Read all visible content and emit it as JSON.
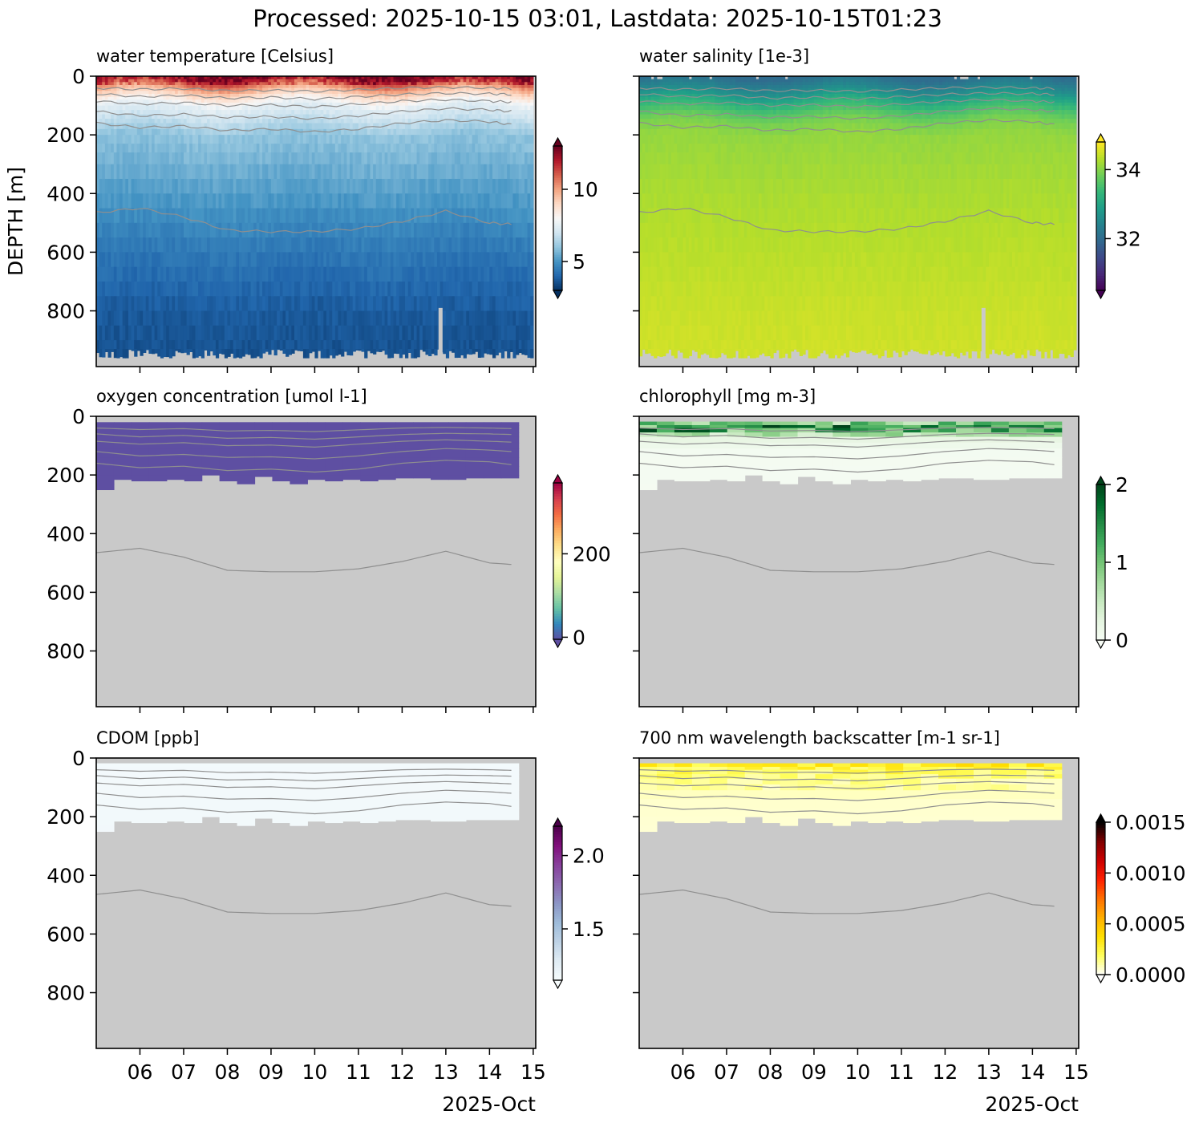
{
  "page": {
    "title": "Processed: 2025-10-15 03:01, Lastdata: 2025-10-15T01:23"
  },
  "colors": {
    "missing_gray": "#c9c9c9",
    "contour": "#8f8f8f",
    "axes": "#000000"
  },
  "chart_data": {
    "type": "heatmap",
    "description_note": "",
    "x_axis": {
      "xlim": [
        "2025-10-05T00:00",
        "2025-10-15T01:23"
      ],
      "tick_labels": [
        "06",
        "07",
        "08",
        "09",
        "10",
        "11",
        "12",
        "13",
        "14",
        "15"
      ],
      "tick_dates": [
        "2025-10-06",
        "2025-10-07",
        "2025-10-08",
        "2025-10-09",
        "2025-10-10",
        "2025-10-11",
        "2025-10-12",
        "2025-10-13",
        "2025-10-14",
        "2025-10-15"
      ],
      "offset_label": "2025-Oct"
    },
    "y_axis": {
      "label": "DEPTH [m]",
      "ylim": [
        990,
        0
      ],
      "inverted": true,
      "tick_labels": [
        "0",
        "200",
        "400",
        "600",
        "800"
      ],
      "tick_values": [
        0,
        200,
        400,
        600,
        800
      ]
    },
    "density_contours_depth_m": {
      "note": "",
      "x_dates": [
        "2025-10-05",
        "2025-10-06",
        "2025-10-07",
        "2025-10-08",
        "2025-10-09",
        "2025-10-10",
        "2025-10-11",
        "2025-10-12",
        "2025-10-13",
        "2025-10-14",
        "2025-10-14T12:00"
      ],
      "levels": [
        [
          40,
          45,
          42,
          50,
          48,
          52,
          46,
          40,
          38,
          40,
          42
        ],
        [
          60,
          70,
          65,
          75,
          72,
          78,
          70,
          62,
          58,
          60,
          62
        ],
        [
          85,
          95,
          90,
          100,
          98,
          105,
          95,
          85,
          80,
          85,
          88
        ],
        [
          120,
          135,
          130,
          140,
          138,
          145,
          135,
          120,
          110,
          115,
          120
        ],
        [
          160,
          175,
          170,
          185,
          180,
          190,
          180,
          160,
          150,
          155,
          165
        ],
        [
          465,
          450,
          480,
          525,
          530,
          530,
          520,
          495,
          460,
          500,
          505
        ]
      ]
    },
    "panels": [
      {
        "id": "temperature",
        "title": "water temperature [Celsius]",
        "colormap": "RdBu_r",
        "clim": [
          3,
          13
        ],
        "colorbar_ticks": [
          "5",
          "10"
        ],
        "colorbar_tick_values": [
          5,
          10
        ],
        "data_depth_range_m": [
          20,
          960
        ],
        "profile": {
          "depths": [
            0,
            50,
            100,
            150,
            200,
            300,
            400,
            500,
            600,
            700,
            800,
            960
          ],
          "values": [
            12.5,
            9.5,
            7.5,
            6.8,
            6.0,
            5.6,
            5.2,
            4.8,
            4.4,
            4.1,
            3.8,
            3.6
          ]
        }
      },
      {
        "id": "salinity",
        "title": "water salinity [1e-3]",
        "colormap": "viridis",
        "clim": [
          30.5,
          34.8
        ],
        "colorbar_ticks": [
          "32",
          "34"
        ],
        "colorbar_tick_values": [
          32,
          34
        ],
        "data_depth_range_m": [
          0,
          960
        ],
        "profile": {
          "depths": [
            0,
            50,
            100,
            150,
            200,
            400,
            600,
            800,
            960
          ],
          "values": [
            32.0,
            32.6,
            33.4,
            33.9,
            34.1,
            34.25,
            34.35,
            34.45,
            34.5
          ]
        }
      },
      {
        "id": "oxygen",
        "title": "oxygen concentration [umol l-1]",
        "colormap": "Spectral_r",
        "clim": [
          -5,
          370
        ],
        "colorbar_ticks": [
          "0",
          "200"
        ],
        "colorbar_tick_values": [
          0,
          200
        ],
        "data_depth_range_m": [
          20,
          250
        ],
        "profile": {
          "depths": [
            0,
            250
          ],
          "values": [
            -5,
            -5
          ]
        }
      },
      {
        "id": "chlorophyll",
        "title": "chlorophyll [mg m-3]",
        "colormap": "Greens",
        "clim": [
          0,
          2
        ],
        "colorbar_ticks": [
          "0",
          "1",
          "2"
        ],
        "colorbar_tick_values": [
          0,
          1,
          2
        ],
        "data_depth_range_m": [
          20,
          250
        ],
        "profile": {
          "depths": [
            20,
            40,
            60,
            80,
            120,
            250
          ],
          "values": [
            0.5,
            1.3,
            0.5,
            0.2,
            0.05,
            0.03
          ]
        }
      },
      {
        "id": "cdom",
        "title": "CDOM [ppb]",
        "colormap": "BuPu",
        "clim": [
          1.15,
          2.2
        ],
        "colorbar_ticks": [
          "1.5",
          "2.0"
        ],
        "colorbar_tick_values": [
          1.5,
          2.0
        ],
        "data_depth_range_m": [
          20,
          250
        ],
        "profile": {
          "depths": [
            20,
            250
          ],
          "values": [
            1.17,
            1.18
          ]
        }
      },
      {
        "id": "backscatter700",
        "title": "700 nm wavelength backscatter [m-1 sr-1]",
        "colormap": "hot_r",
        "clim": [
          0,
          0.0015
        ],
        "colorbar_ticks": [
          "0.0000",
          "0.0005",
          "0.0010",
          "0.0015"
        ],
        "colorbar_tick_values": [
          0,
          0.0005,
          0.001,
          0.0015
        ],
        "data_depth_range_m": [
          20,
          250
        ],
        "profile": {
          "depths": [
            20,
            40,
            80,
            150,
            250
          ],
          "values": [
            0.00025,
            0.00018,
            0.0001,
            6e-05,
            5e-05
          ]
        }
      }
    ]
  }
}
